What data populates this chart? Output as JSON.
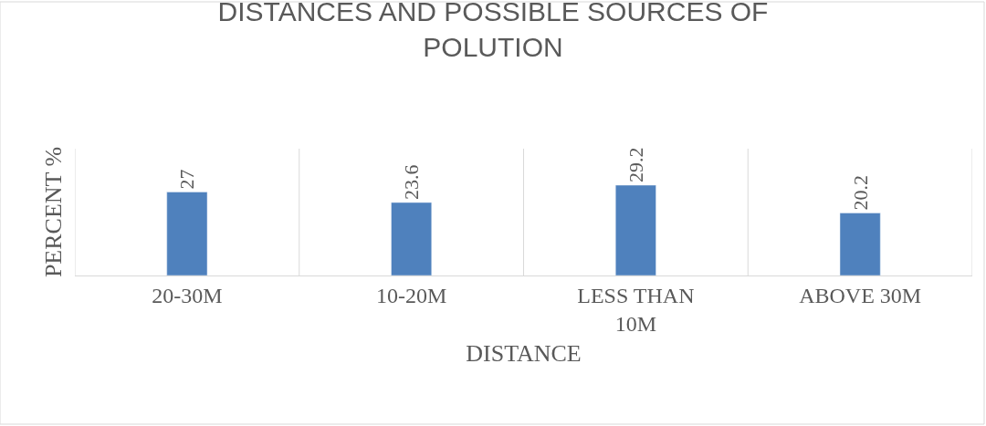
{
  "chart_data": {
    "type": "bar",
    "title": "DISTANCES AND POSSIBLE SOURCES OF POLUTION",
    "xlabel": "DISTANCE",
    "ylabel": "PERCENT %",
    "categories": [
      "20-30M",
      "10-20M",
      "LESS THAN 10M",
      "ABOVE 30M"
    ],
    "values": [
      27,
      23.6,
      29.2,
      20.2
    ],
    "color": "#4f81bd",
    "ylim": [
      0,
      41
    ],
    "data_labels": true,
    "grid": "x",
    "legend": false
  }
}
